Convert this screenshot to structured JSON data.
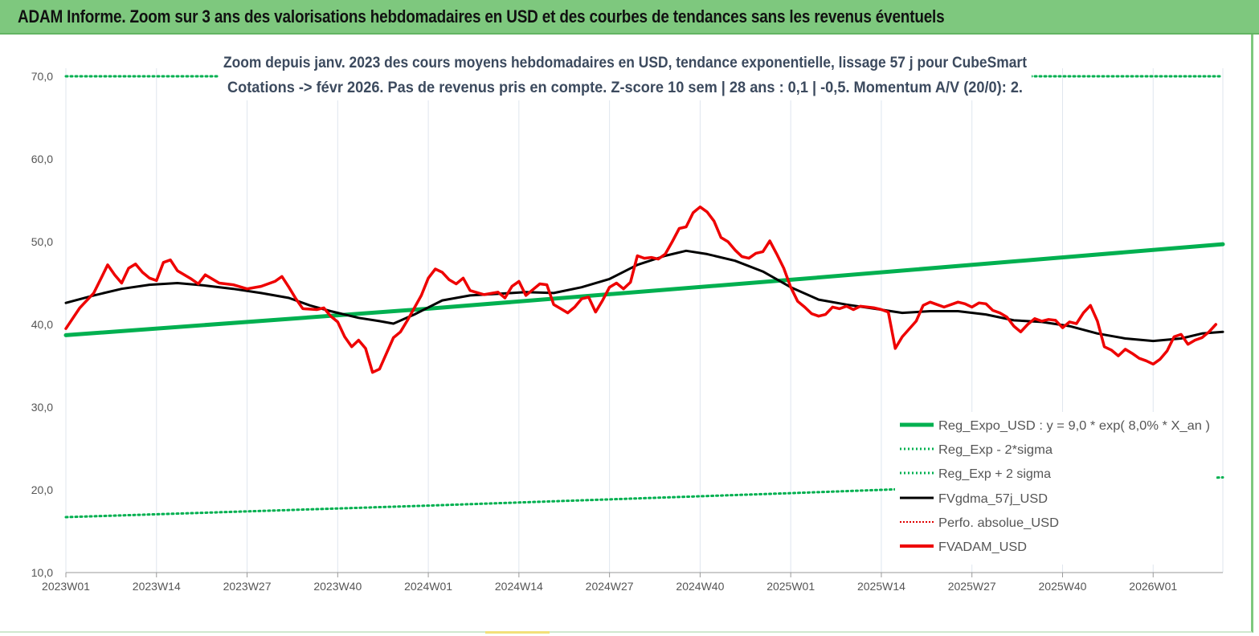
{
  "banner": {
    "title": "ADAM Informe. Zoom sur 3 ans des valorisations hebdomadaires en USD et des courbes de tendances sans les revenus éventuels"
  },
  "colors": {
    "banner": "#7ec87e",
    "trend": "#00b050",
    "band": "#00b050",
    "fvgdma": "#000000",
    "perfo": "#e00000",
    "fvadam": "#ee0000",
    "grid": "#dfe6ee"
  },
  "chart_data": {
    "type": "line",
    "title_lines": [
      "Zoom depuis janv. 2023 des cours moyens hebdomadaires en USD, tendance exponentielle, lissage 57 j pour CubeSmart",
      "Cotations -> févr 2026. Pas de revenus pris en compte. Z-score 10 sem  | 28 ans : 0,1 | -0,5. Momentum A/V (20/0): 2."
    ],
    "x_range": [
      0,
      166
    ],
    "ylim": [
      10,
      70
    ],
    "y_ticks": [
      {
        "v": 70,
        "label": "70,0"
      },
      {
        "v": 60,
        "label": "60,0"
      },
      {
        "v": 50,
        "label": "50,0"
      },
      {
        "v": 40,
        "label": "40,0"
      },
      {
        "v": 30,
        "label": "30,0"
      },
      {
        "v": 20,
        "label": "20,0"
      },
      {
        "v": 10,
        "label": "10,0"
      }
    ],
    "x_ticks": [
      {
        "x": 0,
        "label": "2023W01"
      },
      {
        "x": 13,
        "label": "2023W14"
      },
      {
        "x": 26,
        "label": "2023W27"
      },
      {
        "x": 39,
        "label": "2023W40"
      },
      {
        "x": 52,
        "label": "2024W01"
      },
      {
        "x": 65,
        "label": "2024W14"
      },
      {
        "x": 78,
        "label": "2024W27"
      },
      {
        "x": 91,
        "label": "2024W40"
      },
      {
        "x": 104,
        "label": "2025W01"
      },
      {
        "x": 117,
        "label": "2025W14"
      },
      {
        "x": 130,
        "label": "2025W27"
      },
      {
        "x": 143,
        "label": "2025W40"
      },
      {
        "x": 156,
        "label": "2026W01"
      }
    ],
    "grid": "vertical",
    "legend_position": "bottom-right",
    "series": [
      {
        "name": "Reg_Expo_USD : y = 9,0 * exp( 8,0% *  X_an )",
        "style": "solid-thick",
        "points": [
          [
            0,
            38.7
          ],
          [
            52,
            41.9
          ],
          [
            104,
            45.4
          ],
          [
            166,
            49.7
          ]
        ]
      },
      {
        "name": "Reg_Exp - 2*sigma",
        "style": "dotted",
        "points": [
          [
            0,
            16.7
          ],
          [
            52,
            18.1
          ],
          [
            104,
            19.6
          ],
          [
            166,
            21.5
          ]
        ]
      },
      {
        "name": "Reg_Exp + 2 sigma",
        "style": "dotted",
        "points": [
          [
            0,
            70
          ],
          [
            166,
            70
          ]
        ]
      },
      {
        "name": "FVgdma_57j_USD",
        "style": "solid",
        "points": [
          [
            0,
            42.6
          ],
          [
            4,
            43.5
          ],
          [
            8,
            44.3
          ],
          [
            12,
            44.8
          ],
          [
            16,
            45.0
          ],
          [
            20,
            44.7
          ],
          [
            24,
            44.3
          ],
          [
            28,
            43.8
          ],
          [
            32,
            43.2
          ],
          [
            35,
            42.3
          ],
          [
            38,
            41.6
          ],
          [
            42,
            40.8
          ],
          [
            45,
            40.4
          ],
          [
            47,
            40.1
          ],
          [
            50,
            41.2
          ],
          [
            54,
            42.9
          ],
          [
            58,
            43.5
          ],
          [
            62,
            43.7
          ],
          [
            66,
            43.9
          ],
          [
            70,
            43.8
          ],
          [
            74,
            44.5
          ],
          [
            78,
            45.5
          ],
          [
            82,
            47.2
          ],
          [
            86,
            48.3
          ],
          [
            89,
            48.9
          ],
          [
            92,
            48.5
          ],
          [
            96,
            47.7
          ],
          [
            100,
            46.4
          ],
          [
            104,
            44.5
          ],
          [
            108,
            43.0
          ],
          [
            112,
            42.4
          ],
          [
            116,
            41.9
          ],
          [
            120,
            41.4
          ],
          [
            124,
            41.6
          ],
          [
            128,
            41.6
          ],
          [
            132,
            41.2
          ],
          [
            136,
            40.5
          ],
          [
            140,
            40.3
          ],
          [
            144,
            39.8
          ],
          [
            148,
            38.9
          ],
          [
            152,
            38.3
          ],
          [
            156,
            38.0
          ],
          [
            160,
            38.3
          ],
          [
            163,
            38.9
          ],
          [
            166,
            39.1
          ]
        ]
      },
      {
        "name": "Perfo. absolue_USD",
        "style": "dotted",
        "points": []
      },
      {
        "name": "FVADAM_USD",
        "style": "solid-thick",
        "points": [
          [
            0,
            39.5
          ],
          [
            2,
            42.0
          ],
          [
            4,
            43.8
          ],
          [
            5,
            45.5
          ],
          [
            6,
            47.2
          ],
          [
            7,
            46.0
          ],
          [
            8,
            45.0
          ],
          [
            9,
            46.8
          ],
          [
            10,
            47.3
          ],
          [
            11,
            46.3
          ],
          [
            12,
            45.6
          ],
          [
            13,
            45.3
          ],
          [
            14,
            47.5
          ],
          [
            15,
            47.8
          ],
          [
            16,
            46.5
          ],
          [
            18,
            45.5
          ],
          [
            19,
            44.9
          ],
          [
            20,
            46.0
          ],
          [
            22,
            45.0
          ],
          [
            24,
            44.8
          ],
          [
            26,
            44.3
          ],
          [
            28,
            44.6
          ],
          [
            30,
            45.2
          ],
          [
            31,
            45.8
          ],
          [
            32,
            44.5
          ],
          [
            33,
            43.1
          ],
          [
            34,
            41.9
          ],
          [
            36,
            41.8
          ],
          [
            37,
            42.0
          ],
          [
            38,
            41.0
          ],
          [
            39,
            40.3
          ],
          [
            40,
            38.5
          ],
          [
            41,
            37.3
          ],
          [
            42,
            38.1
          ],
          [
            43,
            37.1
          ],
          [
            44,
            34.2
          ],
          [
            45,
            34.6
          ],
          [
            46,
            36.5
          ],
          [
            47,
            38.4
          ],
          [
            48,
            39.1
          ],
          [
            49,
            40.5
          ],
          [
            51,
            43.5
          ],
          [
            52,
            45.6
          ],
          [
            53,
            46.7
          ],
          [
            54,
            46.3
          ],
          [
            55,
            45.4
          ],
          [
            56,
            44.9
          ],
          [
            57,
            45.6
          ],
          [
            58,
            44.1
          ],
          [
            60,
            43.6
          ],
          [
            62,
            43.9
          ],
          [
            63,
            43.2
          ],
          [
            64,
            44.6
          ],
          [
            65,
            45.2
          ],
          [
            66,
            43.5
          ],
          [
            67,
            44.2
          ],
          [
            68,
            44.9
          ],
          [
            69,
            44.8
          ],
          [
            70,
            42.4
          ],
          [
            71,
            41.9
          ],
          [
            72,
            41.4
          ],
          [
            73,
            42.1
          ],
          [
            74,
            43.1
          ],
          [
            75,
            43.3
          ],
          [
            76,
            41.5
          ],
          [
            77,
            42.9
          ],
          [
            78,
            44.5
          ],
          [
            79,
            45.0
          ],
          [
            80,
            44.3
          ],
          [
            81,
            45.1
          ],
          [
            82,
            48.3
          ],
          [
            83,
            48.0
          ],
          [
            84,
            48.1
          ],
          [
            85,
            47.9
          ],
          [
            86,
            48.5
          ],
          [
            87,
            50.0
          ],
          [
            88,
            51.6
          ],
          [
            89,
            51.8
          ],
          [
            90,
            53.5
          ],
          [
            91,
            54.2
          ],
          [
            92,
            53.6
          ],
          [
            93,
            52.5
          ],
          [
            94,
            50.5
          ],
          [
            95,
            50.0
          ],
          [
            96,
            49.0
          ],
          [
            97,
            48.2
          ],
          [
            98,
            48.0
          ],
          [
            99,
            48.6
          ],
          [
            100,
            48.8
          ],
          [
            101,
            50.1
          ],
          [
            102,
            48.5
          ],
          [
            103,
            46.8
          ],
          [
            104,
            44.5
          ],
          [
            105,
            42.8
          ],
          [
            106,
            42.1
          ],
          [
            107,
            41.3
          ],
          [
            108,
            41.0
          ],
          [
            109,
            41.2
          ],
          [
            110,
            42.1
          ],
          [
            111,
            41.9
          ],
          [
            112,
            42.2
          ],
          [
            113,
            41.8
          ],
          [
            114,
            42.2
          ],
          [
            116,
            42.0
          ],
          [
            117,
            41.8
          ],
          [
            118,
            41.5
          ],
          [
            119,
            37.1
          ],
          [
            120,
            38.5
          ],
          [
            122,
            40.4
          ],
          [
            123,
            42.3
          ],
          [
            124,
            42.7
          ],
          [
            126,
            42.1
          ],
          [
            128,
            42.7
          ],
          [
            129,
            42.5
          ],
          [
            130,
            42.1
          ],
          [
            131,
            42.6
          ],
          [
            132,
            42.5
          ],
          [
            133,
            41.7
          ],
          [
            134,
            41.4
          ],
          [
            135,
            40.9
          ],
          [
            136,
            39.8
          ],
          [
            137,
            39.1
          ],
          [
            138,
            40.0
          ],
          [
            139,
            40.7
          ],
          [
            140,
            40.4
          ],
          [
            141,
            40.6
          ],
          [
            142,
            40.5
          ],
          [
            143,
            39.6
          ],
          [
            144,
            40.3
          ],
          [
            145,
            40.1
          ],
          [
            146,
            41.4
          ],
          [
            147,
            42.3
          ],
          [
            148,
            40.4
          ],
          [
            149,
            37.3
          ],
          [
            150,
            36.9
          ],
          [
            151,
            36.2
          ],
          [
            152,
            37.0
          ],
          [
            153,
            36.5
          ],
          [
            154,
            35.9
          ],
          [
            155,
            35.6
          ],
          [
            156,
            35.2
          ],
          [
            157,
            35.8
          ],
          [
            158,
            36.8
          ],
          [
            159,
            38.5
          ],
          [
            160,
            38.8
          ],
          [
            161,
            37.6
          ],
          [
            162,
            38.1
          ],
          [
            163,
            38.4
          ],
          [
            164,
            39.1
          ],
          [
            165,
            40.0
          ]
        ]
      }
    ]
  }
}
